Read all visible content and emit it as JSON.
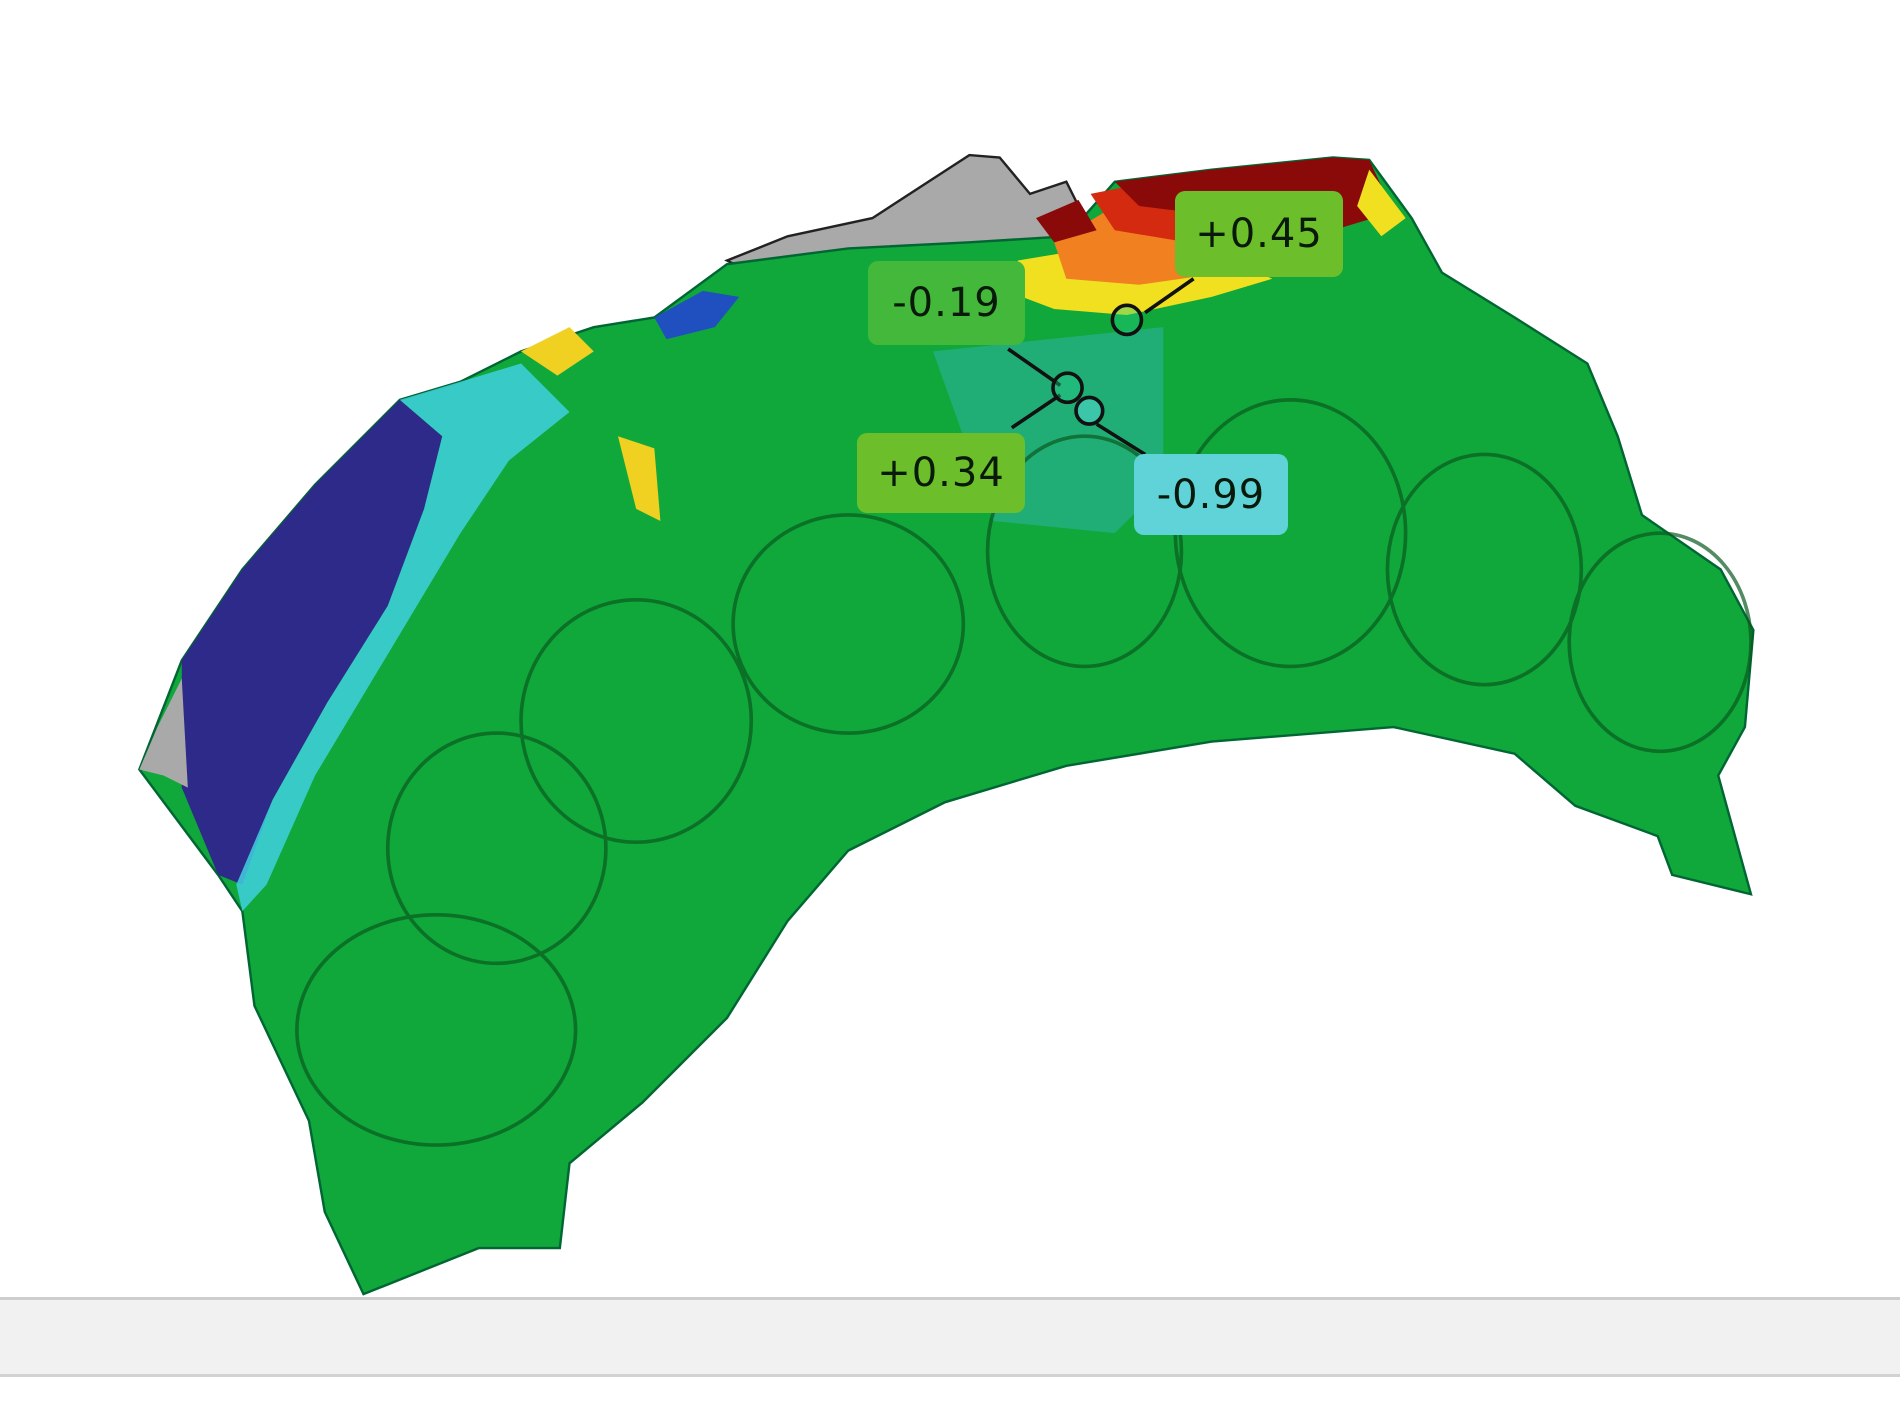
{
  "viewer": {
    "markers": [
      {
        "id": "m1",
        "value": "+0.45",
        "bg": "#6cbf2a"
      },
      {
        "id": "m2",
        "value": "-0.19",
        "bg": "#44b83a"
      },
      {
        "id": "m3",
        "value": "+0.34",
        "bg": "#6cbf2a"
      },
      {
        "id": "m4",
        "value": "-0.99",
        "bg": "#5fd3d8"
      }
    ],
    "colors": {
      "surface_green": "#10a83a",
      "deviation_blue": "#2e2a8a",
      "deviation_cyan": "#3fd0e0",
      "deviation_yellow": "#f0e020",
      "deviation_red": "#d42a10",
      "deviation_darkred": "#8a0a0a",
      "no_data_gray": "#a8a8a8"
    }
  },
  "status_bar": {}
}
